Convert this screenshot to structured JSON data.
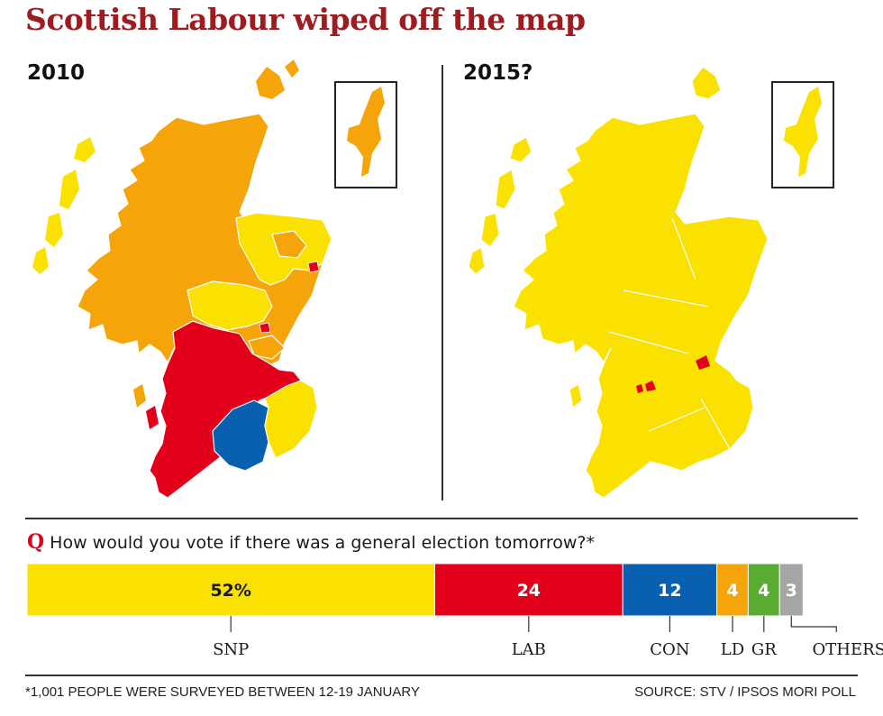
{
  "headline": "Scottish Labour wiped off the map",
  "maps": {
    "left_year": "2010",
    "right_year": "2015?"
  },
  "colors": {
    "snp": "#fbe100",
    "lab": "#e2001a",
    "con": "#0a60b0",
    "ld": "#f5a40a",
    "gr": "#5aab32",
    "others": "#a5a5a5",
    "headline": "#9e1b1f"
  },
  "question": {
    "marker": "Q",
    "text": "How would you vote if there was a general election tomorrow?*"
  },
  "chart_data": {
    "type": "bar",
    "orientation": "horizontal-stacked",
    "categories": [
      "SNP",
      "LAB",
      "CON",
      "LD",
      "GR",
      "OTHERS"
    ],
    "values": [
      52,
      24,
      12,
      4,
      4,
      3
    ],
    "value_labels": [
      "52%",
      "24",
      "12",
      "4",
      "4",
      "3"
    ],
    "unit": "%",
    "xlim": [
      0,
      100
    ]
  },
  "footer": {
    "note": "*1,001 PEOPLE WERE SURVEYED BETWEEN 12-19 JANUARY",
    "source": "SOURCE: STV / IPSOS MORI POLL"
  }
}
